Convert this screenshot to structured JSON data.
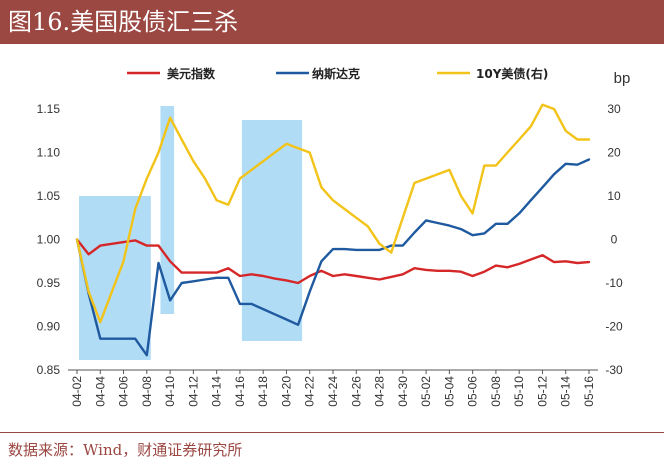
{
  "header": {
    "title": "图16.美国股债汇三杀"
  },
  "footer": {
    "source": "数据来源：Wind，财通证券研究所"
  },
  "chart_data": {
    "type": "line",
    "x": [
      "04-02",
      "04-03",
      "04-04",
      "04-05",
      "04-06",
      "04-07",
      "04-08",
      "04-09",
      "04-10",
      "04-11",
      "04-12",
      "04-13",
      "04-14",
      "04-15",
      "04-16",
      "04-17",
      "04-18",
      "04-19",
      "04-20",
      "04-21",
      "04-22",
      "04-23",
      "04-24",
      "04-25",
      "04-26",
      "04-27",
      "04-28",
      "04-29",
      "04-30",
      "05-01",
      "05-02",
      "05-03",
      "05-04",
      "05-05",
      "05-06",
      "05-07",
      "05-08",
      "05-09",
      "05-10",
      "05-11",
      "05-12",
      "05-13",
      "05-14",
      "05-15",
      "05-16"
    ],
    "x_tick_labels": [
      "04-02",
      "04-04",
      "04-06",
      "04-08",
      "04-10",
      "04-12",
      "04-14",
      "04-16",
      "04-18",
      "04-20",
      "04-22",
      "04-24",
      "04-26",
      "04-28",
      "04-30",
      "05-02",
      "05-04",
      "05-06",
      "05-08",
      "05-10",
      "05-12",
      "05-14",
      "05-16"
    ],
    "left_axis": {
      "ylim": [
        0.85,
        1.15
      ],
      "ticks": [
        "0.85",
        "0.90",
        "0.95",
        "1.00",
        "1.05",
        "1.10",
        "1.15"
      ]
    },
    "right_axis": {
      "ylim": [
        -30,
        30
      ],
      "unit": "bp",
      "ticks": [
        "-30",
        "-20",
        "-10",
        "0",
        "10",
        "20",
        "30"
      ]
    },
    "legend_position": "top",
    "grid": false,
    "series": [
      {
        "name": "美元指数",
        "axis": "left",
        "color": "#d62728",
        "values": [
          1.0,
          0.983,
          0.993,
          0.995,
          0.997,
          0.999,
          0.993,
          0.993,
          0.975,
          0.962,
          0.962,
          0.962,
          0.962,
          0.967,
          0.958,
          0.96,
          0.958,
          0.955,
          0.953,
          0.95,
          0.958,
          0.964,
          0.958,
          0.96,
          0.958,
          0.956,
          0.954,
          0.957,
          0.96,
          0.967,
          0.965,
          0.964,
          0.964,
          0.963,
          0.958,
          0.963,
          0.97,
          0.968,
          0.972,
          0.977,
          0.982,
          0.974,
          0.975,
          0.973,
          0.974
        ]
      },
      {
        "name": "纳斯达克",
        "axis": "left",
        "color": "#1f5aa0",
        "values": [
          1.0,
          0.938,
          0.886,
          0.886,
          0.886,
          0.886,
          0.867,
          0.973,
          0.93,
          0.95,
          0.952,
          0.954,
          0.956,
          0.956,
          0.926,
          0.926,
          0.92,
          0.914,
          0.908,
          0.902,
          0.94,
          0.975,
          0.989,
          0.989,
          0.988,
          0.988,
          0.988,
          0.993,
          0.993,
          1.008,
          1.022,
          1.019,
          1.016,
          1.012,
          1.005,
          1.007,
          1.018,
          1.018,
          1.03,
          1.045,
          1.06,
          1.075,
          1.087,
          1.086,
          1.092
        ]
      },
      {
        "name": "10Y美债(右)",
        "axis": "right",
        "color": "#f2c318",
        "values": [
          0,
          -12,
          -19,
          -12,
          -5,
          7,
          14,
          20,
          28,
          23,
          18,
          14,
          9,
          8,
          14,
          16,
          18,
          20,
          22,
          21,
          20,
          12,
          9,
          7,
          5,
          3,
          -1,
          -3,
          5,
          13,
          14,
          15,
          16,
          10,
          6,
          17,
          17,
          20,
          23,
          26,
          31,
          30,
          25,
          23,
          23
        ]
      }
    ],
    "highlight_ranges": [
      [
        "04-02",
        "04-08"
      ],
      [
        "04-09",
        "04-10"
      ],
      [
        "04-16",
        "04-21"
      ]
    ]
  }
}
